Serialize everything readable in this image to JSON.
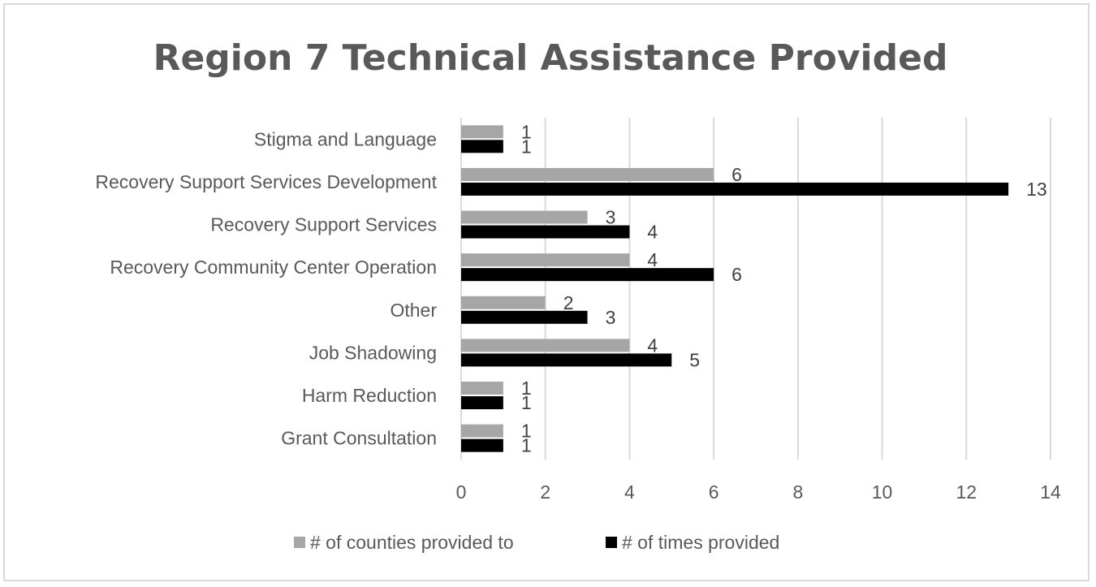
{
  "chart_data": {
    "type": "bar",
    "orientation": "horizontal",
    "title": "Region 7 Technical Assistance Provided",
    "categories": [
      "Stigma and Language",
      "Recovery Support Services Development",
      "Recovery Support Services",
      "Recovery Community Center Operation",
      "Other",
      "Job Shadowing",
      "Harm Reduction",
      "Grant Consultation"
    ],
    "series": [
      {
        "name": "# of counties provided to",
        "color": "#a6a6a6",
        "values": [
          1,
          6,
          3,
          4,
          2,
          4,
          1,
          1
        ]
      },
      {
        "name": "# of times provided",
        "color": "#000000",
        "values": [
          1,
          13,
          4,
          6,
          3,
          5,
          1,
          1
        ]
      }
    ],
    "xlim": [
      0,
      14
    ],
    "xticks": [
      0,
      2,
      4,
      6,
      8,
      10,
      12,
      14
    ],
    "grid": true,
    "legend": "bottom",
    "data_labels": true
  }
}
